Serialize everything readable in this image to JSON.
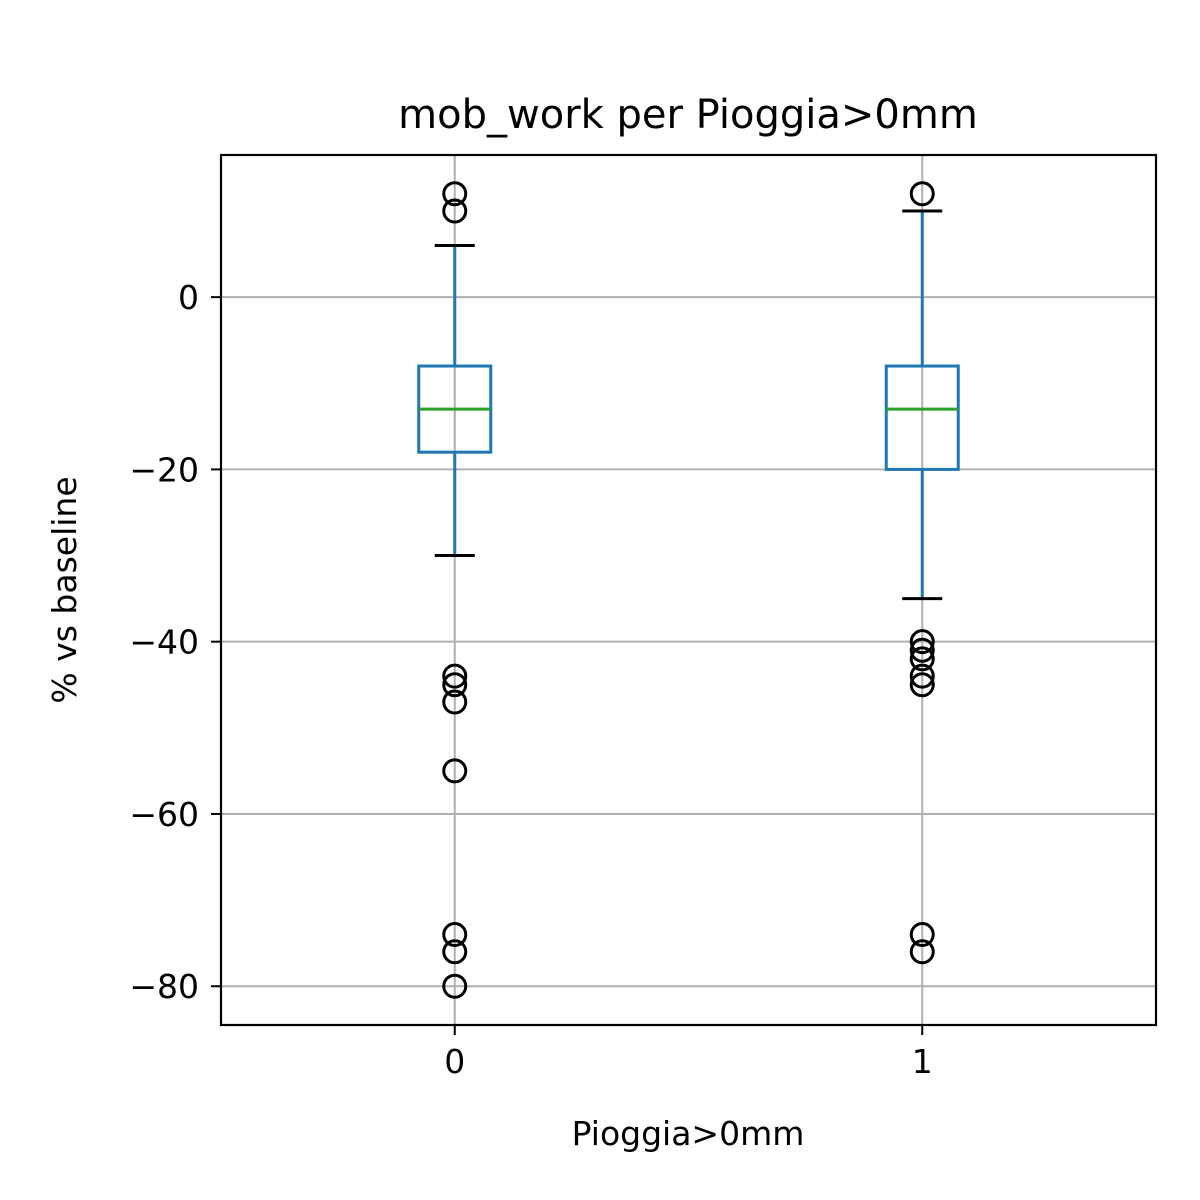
{
  "chart_data": {
    "type": "box",
    "title": "mob_work per Pioggia>0mm",
    "xlabel": "Pioggia>0mm",
    "ylabel": "% vs baseline",
    "categories": [
      "0",
      "1"
    ],
    "ylim": [
      -84.5,
      16.5
    ],
    "yticks": [
      0,
      -20,
      -40,
      -60,
      -80
    ],
    "ytick_labels": [
      "0",
      "−20",
      "−40",
      "−60",
      "−80"
    ],
    "grid": true,
    "boxes": [
      {
        "category": "0",
        "whisker_low": -30,
        "q1": -18,
        "median": -13,
        "q3": -8,
        "whisker_high": 6,
        "outliers": [
          12,
          10,
          -44,
          -45,
          -47,
          -55,
          -74,
          -76,
          -80
        ]
      },
      {
        "category": "1",
        "whisker_low": -35,
        "q1": -20,
        "median": -13,
        "q3": -8,
        "whisker_high": 10,
        "outliers": [
          12,
          -40,
          -41,
          -42,
          -44,
          -45,
          -74,
          -76
        ]
      }
    ],
    "colors": {
      "box": "#1f77b4",
      "median": "#2ca02c",
      "whisker_cap": "#000000",
      "grid": "#b0b0b0",
      "outlier": "#000000"
    }
  }
}
